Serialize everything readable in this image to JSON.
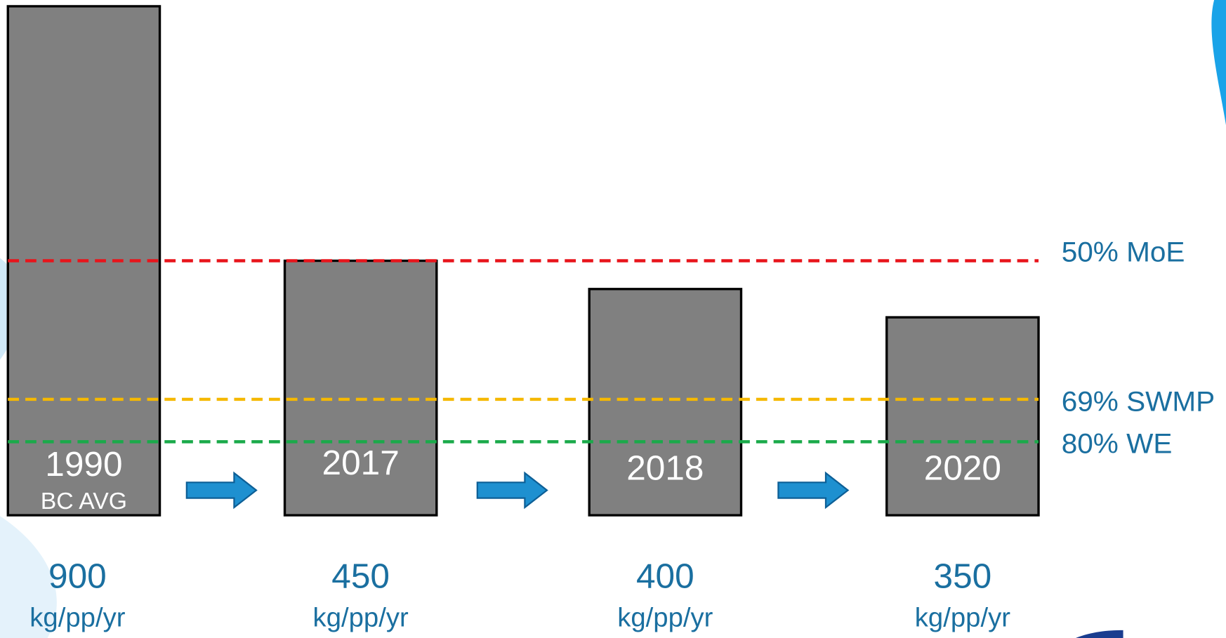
{
  "chart_data": {
    "type": "bar",
    "categories": [
      "1990",
      "2017",
      "2018",
      "2020"
    ],
    "category_notes": [
      "BC AVG",
      null,
      null,
      null
    ],
    "values": [
      900,
      450,
      400,
      350
    ],
    "unit": "kg/pp/yr",
    "color": "#808080",
    "ylim": [
      0,
      900
    ],
    "reference_lines": [
      {
        "label": "50% MoE",
        "value": 450,
        "color": "#e8141b"
      },
      {
        "label": "69% SWMP",
        "value": 205,
        "color": "#f5b800"
      },
      {
        "label": "80% WE",
        "value": 130,
        "color": "#1aaa4a"
      }
    ]
  }
}
